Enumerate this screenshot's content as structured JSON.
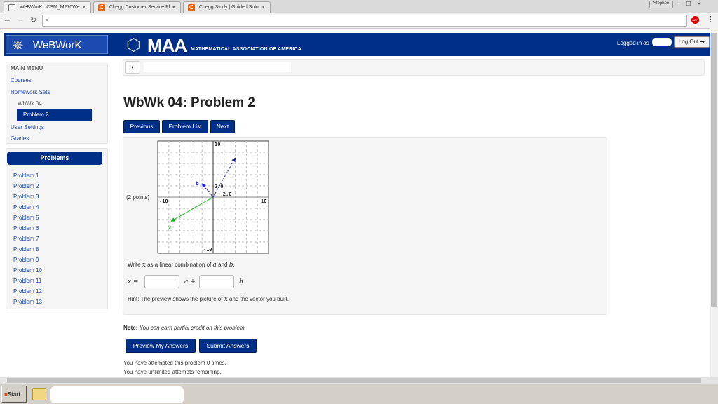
{
  "browser": {
    "tabs": [
      {
        "label": "WeBWorK : CSM_M270We",
        "icon": "document-icon",
        "active": true
      },
      {
        "label": "Chegg Customer Service Pl",
        "icon": "chegg-icon",
        "active": false
      },
      {
        "label": "Chegg Study | Guided Solu",
        "icon": "chegg-icon",
        "active": false
      }
    ],
    "user_button": "Stephen",
    "abp_label": "ABP"
  },
  "header": {
    "brand": "WeBWorK",
    "maa": "MAA",
    "maa_sub": "MATHEMATICAL ASSOCIATION OF AMERICA",
    "logged_in": "Logged in as",
    "logout": "Log Out"
  },
  "sidebar": {
    "heading": "MAIN MENU",
    "items": [
      {
        "label": "Courses"
      },
      {
        "label": "Homework Sets"
      },
      {
        "label": "WbWk 04"
      },
      {
        "label": "Problem 2"
      },
      {
        "label": "User Settings"
      },
      {
        "label": "Grades"
      }
    ],
    "problems_title": "Problems",
    "problems": [
      "Problem 1",
      "Problem 2",
      "Problem 3",
      "Problem 4",
      "Problem 5",
      "Problem 6",
      "Problem 7",
      "Problem 8",
      "Problem 9",
      "Problem 10",
      "Problem 11",
      "Problem 12",
      "Problem 13"
    ]
  },
  "main": {
    "title": "WbWk 04: Problem 2",
    "nav": {
      "previous": "Previous",
      "list": "Problem List",
      "next": "Next"
    },
    "points": "(2 points)",
    "graph": {
      "x_min_label": "-10",
      "x_max_label": "10",
      "y_max_label": "10",
      "y_min_label": "-10",
      "tick_x": "2.0",
      "tick_y": "2.0",
      "label_b": "b",
      "label_x": "x",
      "vectors": {
        "a": [
          4,
          7
        ],
        "b": [
          -2,
          2.4
        ],
        "x": [
          -7.6,
          -4.3
        ]
      },
      "colors": {
        "a": "#1a1a80",
        "b": "#1a1aff",
        "x": "#11bb11"
      }
    },
    "prompt_pre": "Write",
    "prompt_x": "x",
    "prompt_mid": "as a linear combination of",
    "prompt_a": "a",
    "prompt_and": "and",
    "prompt_b": "b",
    "eq_lhs": "x =",
    "eq_a": "a +",
    "eq_b": "b",
    "coef_a": "",
    "coef_b": "",
    "hint_pre": "Hint: The preview shows the picture of",
    "hint_x": "x",
    "hint_post": "and the vector you built.",
    "note_label": "Note:",
    "note_text": "You can earn partial credit on this problem.",
    "preview": "Preview My Answers",
    "submit": "Submit Answers",
    "attempts": "You have attempted this problem 0 times.",
    "remaining": "You have unlimited attempts remaining."
  },
  "taskbar": {
    "start": "Start"
  }
}
